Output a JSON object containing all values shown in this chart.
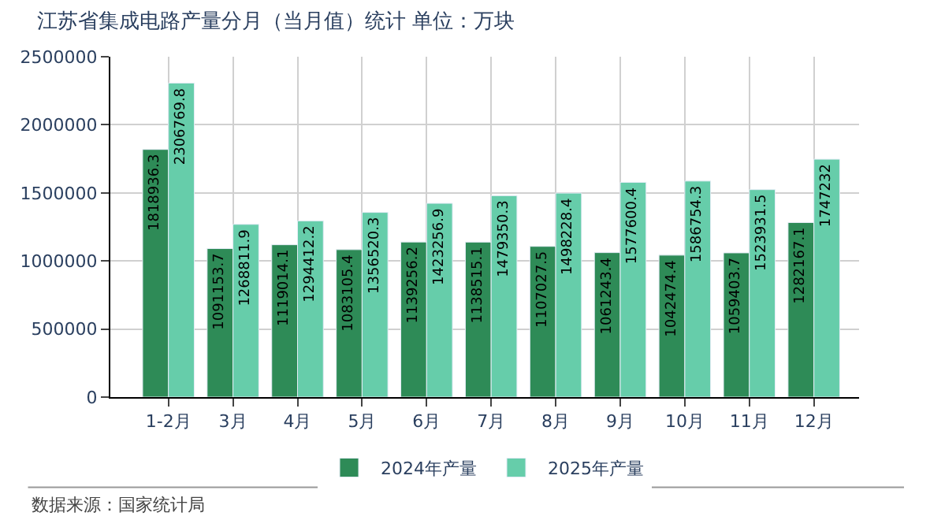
{
  "chart_data": {
    "type": "bar",
    "title": "江苏省集成电路产量分月（当月值）统计 单位：万块",
    "categories": [
      "1-2月",
      "3月",
      "4月",
      "5月",
      "6月",
      "7月",
      "8月",
      "9月",
      "10月",
      "11月",
      "12月"
    ],
    "series": [
      {
        "name": "2024年产量",
        "color": "#2e8b57",
        "values": [
          1818936.3,
          1091153.7,
          1119014.1,
          1083105.4,
          1139256.2,
          1138515.1,
          1107027.5,
          1061243.4,
          1042474.4,
          1059403.7,
          1282167.1
        ]
      },
      {
        "name": "2025年产量",
        "color": "#66cdaa",
        "values": [
          2306769.8,
          1268811.9,
          1294412.2,
          1356520.3,
          1423256.9,
          1479350.3,
          1498228.4,
          1577600.4,
          1586754.3,
          1523931.5,
          1747232
        ]
      }
    ],
    "ylim": [
      0,
      2500000
    ],
    "yticks": [
      0,
      500000,
      1000000,
      1500000,
      2000000,
      2500000
    ],
    "grid": true,
    "legend": "bottom",
    "data_labels": true,
    "annotations": [
      "数据来源：国家统计局"
    ]
  }
}
